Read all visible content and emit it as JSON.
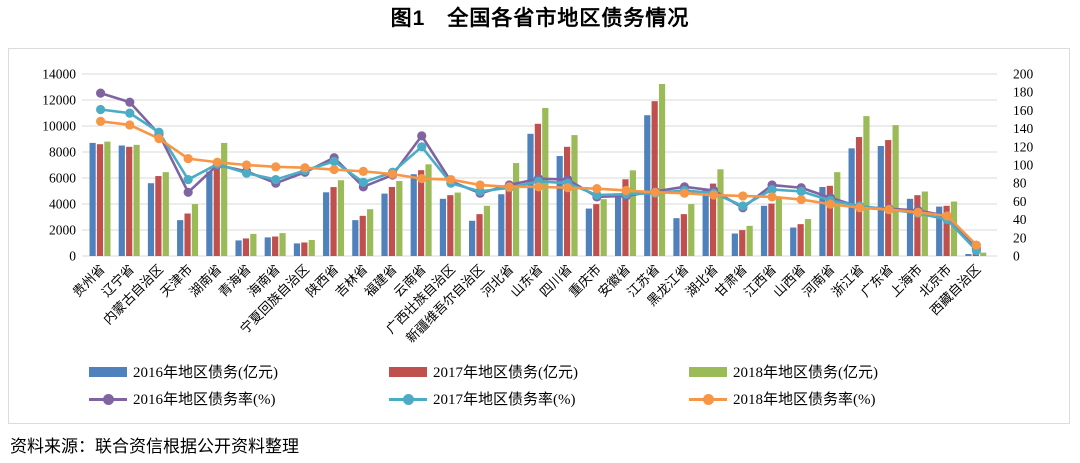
{
  "title": "图1　全国各省市地区债务情况",
  "source_note": "资料来源：联合资信根据公开资料整理",
  "chart_data": {
    "type": "bar",
    "subtype": "grouped-bars-with-lines-dual-axis",
    "grid": true,
    "legend_position": "bottom",
    "categories": [
      "贵州省",
      "辽宁省",
      "内蒙古自治区",
      "天津市",
      "湖南省",
      "青海省",
      "海南省",
      "宁夏回族自治区",
      "陕西省",
      "吉林省",
      "福建省",
      "云南省",
      "广西壮族自治区",
      "新疆维吾尔自治区",
      "河北省",
      "山东省",
      "四川省",
      "重庆市",
      "安徽省",
      "江苏省",
      "黑龙江省",
      "湖北省",
      "甘肃省",
      "江西省",
      "山西省",
      "河南省",
      "浙江省",
      "广东省",
      "上海市",
      "北京市",
      "西藏自治区"
    ],
    "left_axis": {
      "min": 0,
      "max": 14000,
      "step": 2000,
      "ticks": [
        "0",
        "2000",
        "4000",
        "6000",
        "8000",
        "10000",
        "12000",
        "14000"
      ]
    },
    "right_axis": {
      "min": 0,
      "max": 200,
      "step": 20,
      "ticks": [
        "0",
        "20",
        "40",
        "60",
        "80",
        "100",
        "120",
        "140",
        "160",
        "180",
        "200"
      ]
    },
    "series": [
      {
        "name": "2016年地区债务(亿元)",
        "kind": "bar",
        "axis": "left",
        "color": "#4F81BD",
        "values": [
          8700,
          8500,
          5600,
          2760,
          6500,
          1200,
          1430,
          970,
          4900,
          2760,
          4800,
          6290,
          4400,
          2710,
          4750,
          9400,
          7690,
          3650,
          4550,
          10830,
          2910,
          5140,
          1730,
          3860,
          2190,
          5310,
          8280,
          8460,
          4400,
          3800,
          150
        ]
      },
      {
        "name": "2017年地区债务(亿元)",
        "kind": "bar",
        "axis": "left",
        "color": "#C0504D",
        "values": [
          8600,
          8400,
          6150,
          3270,
          7000,
          1350,
          1500,
          1040,
          5300,
          3090,
          5310,
          6600,
          4680,
          3220,
          5100,
          10170,
          8400,
          3990,
          5900,
          11910,
          3220,
          5570,
          1990,
          4030,
          2450,
          5400,
          9150,
          8920,
          4680,
          3860,
          200
        ]
      },
      {
        "name": "2018年地区债务(亿元)",
        "kind": "bar",
        "axis": "left",
        "color": "#9BBB59",
        "values": [
          8800,
          8550,
          6450,
          3990,
          8700,
          1700,
          1760,
          1230,
          5830,
          3600,
          5770,
          7050,
          4880,
          3860,
          7150,
          11390,
          9300,
          4370,
          6590,
          13230,
          3990,
          6670,
          2320,
          4440,
          2840,
          6450,
          10760,
          10070,
          4960,
          4190,
          260
        ]
      },
      {
        "name": "2016年地区债务率(%)",
        "kind": "line",
        "axis": "right",
        "color": "#8064A2",
        "values": [
          179,
          169,
          134,
          70,
          100,
          93,
          80,
          92,
          108,
          76,
          89,
          132,
          82,
          69,
          78,
          85,
          84,
          65,
          66,
          71,
          76,
          72,
          53,
          78,
          75,
          64,
          54,
          52,
          50,
          44,
          8
        ]
      },
      {
        "name": "2017年地区债务率(%)",
        "kind": "line",
        "axis": "right",
        "color": "#4BACC6",
        "values": [
          161,
          157,
          136,
          84,
          101,
          91,
          84,
          94,
          104,
          81,
          92,
          120,
          80,
          71,
          75,
          82,
          80,
          67,
          68,
          69,
          72,
          69,
          55,
          73,
          71,
          61,
          55,
          51,
          47,
          40,
          6
        ]
      },
      {
        "name": "2018年地区债务率(%)",
        "kind": "line",
        "axis": "right",
        "color": "#F79646",
        "values": [
          148,
          144,
          129,
          107,
          103,
          100,
          98,
          97,
          95,
          93,
          90,
          85,
          84,
          78,
          76,
          76,
          75,
          74,
          72,
          70,
          69,
          67,
          66,
          65,
          62,
          57,
          53,
          51,
          48,
          44,
          12
        ]
      }
    ]
  }
}
